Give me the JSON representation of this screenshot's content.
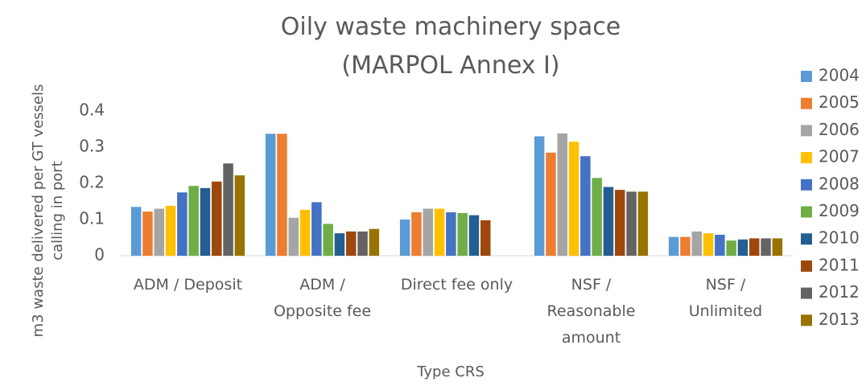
{
  "chart_data": {
    "type": "bar",
    "title": "Oily waste machinery space\n(MARPOL Annex I)",
    "y_label": "m3 waste delivered per GT vessels\ncalling in port",
    "x_label": "Type CRS",
    "categories": [
      "ADM / Deposit",
      "ADM /\nOpposite fee",
      "Direct fee only",
      "NSF /\nReasonable\namount",
      "NSF /\nUnlimited"
    ],
    "series": [
      {
        "name": "2004",
        "color": "#5b9bd5",
        "values": [
          0.135,
          0.337,
          0.1,
          0.33,
          0.052
        ]
      },
      {
        "name": "2005",
        "color": "#ed7d31",
        "values": [
          0.122,
          0.337,
          0.12,
          0.285,
          0.052
        ]
      },
      {
        "name": "2006",
        "color": "#a5a5a5",
        "values": [
          0.13,
          0.105,
          0.13,
          0.338,
          0.067
        ]
      },
      {
        "name": "2007",
        "color": "#ffc000",
        "values": [
          0.138,
          0.127,
          0.13,
          0.315,
          0.062
        ]
      },
      {
        "name": "2008",
        "color": "#4472c4",
        "values": [
          0.175,
          0.148,
          0.12,
          0.275,
          0.058
        ]
      },
      {
        "name": "2009",
        "color": "#70ad47",
        "values": [
          0.193,
          0.088,
          0.118,
          0.215,
          0.042
        ]
      },
      {
        "name": "2010",
        "color": "#255e91",
        "values": [
          0.187,
          0.062,
          0.112,
          0.19,
          0.045
        ]
      },
      {
        "name": "2011",
        "color": "#9e480e",
        "values": [
          0.205,
          0.067,
          0.098,
          0.182,
          0.048
        ]
      },
      {
        "name": "2012",
        "color": "#636363",
        "values": [
          0.255,
          0.067,
          null,
          0.177,
          0.048
        ]
      },
      {
        "name": "2013",
        "color": "#997300",
        "values": [
          0.222,
          0.074,
          null,
          0.177,
          0.048
        ]
      }
    ],
    "ylim": [
      0,
      0.4
    ],
    "yticks": [
      0,
      0.1,
      0.2,
      0.3,
      0.4
    ],
    "grid": false,
    "legend": "right"
  }
}
